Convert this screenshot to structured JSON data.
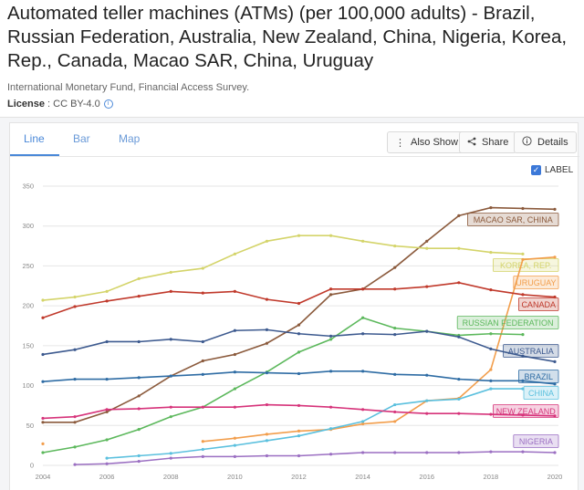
{
  "title": "Automated teller machines (ATMs) (per 100,000 adults) - Brazil, Russian Federation, Australia, New Zealand, China, Nigeria, Korea, Rep., Canada, Macao SAR, China, Uruguay",
  "source": "International Monetary Fund, Financial Access Survey.",
  "license": {
    "label": "License",
    "value": "CC BY-4.0",
    "info_icon": "info-icon"
  },
  "tabs": [
    {
      "label": "Line",
      "active": true
    },
    {
      "label": "Bar",
      "active": false
    },
    {
      "label": "Map",
      "active": false
    }
  ],
  "buttons": {
    "also_show": {
      "label": "Also Show",
      "icon": "vertical-dots-icon"
    },
    "share": {
      "label": "Share",
      "icon": "share-icon"
    },
    "details": {
      "label": "Details",
      "icon": "info-icon"
    }
  },
  "label_toggle": {
    "label": "LABEL",
    "checked": true
  },
  "colors": {
    "accent": "#4a88d8"
  },
  "chart_data": {
    "type": "line",
    "x": [
      2004,
      2005,
      2006,
      2007,
      2008,
      2009,
      2010,
      2011,
      2012,
      2013,
      2014,
      2015,
      2016,
      2017,
      2018,
      2019,
      2020
    ],
    "xticks": [
      2004,
      2006,
      2008,
      2010,
      2012,
      2014,
      2016,
      2018,
      2020
    ],
    "ylim": [
      0,
      350
    ],
    "yticks": [
      0,
      50,
      100,
      150,
      200,
      250,
      300,
      350
    ],
    "grid": "horizontal",
    "series": [
      {
        "name": "MACAO SAR, CHINA",
        "color": "#8b5a3c",
        "values": [
          54,
          54,
          67,
          87,
          112,
          131,
          139,
          153,
          176,
          214,
          221,
          248,
          281,
          313,
          323,
          322,
          321
        ]
      },
      {
        "name": "KOREA, REP.",
        "color": "#d4d46a",
        "values": [
          207,
          211,
          218,
          234,
          242,
          247,
          265,
          281,
          288,
          288,
          281,
          275,
          272,
          272,
          267,
          265,
          null
        ]
      },
      {
        "name": "URUGUAY",
        "color": "#f29e4c",
        "values": [
          27,
          null,
          null,
          null,
          null,
          30,
          34,
          39,
          43,
          45,
          52,
          55,
          81,
          84,
          120,
          258,
          261
        ]
      },
      {
        "name": "CANADA",
        "color": "#c0392b",
        "values": [
          185,
          199,
          206,
          212,
          218,
          216,
          218,
          208,
          203,
          221,
          221,
          221,
          224,
          229,
          220,
          214,
          211
        ]
      },
      {
        "name": "RUSSIAN FEDERATION",
        "color": "#5cb85c",
        "values": [
          16,
          23,
          32,
          45,
          61,
          73,
          96,
          117,
          142,
          158,
          185,
          172,
          168,
          163,
          165,
          164,
          null
        ]
      },
      {
        "name": "AUSTRALIA",
        "color": "#3d5a8f",
        "values": [
          139,
          145,
          155,
          155,
          158,
          155,
          169,
          170,
          165,
          162,
          165,
          164,
          168,
          161,
          146,
          137,
          130
        ]
      },
      {
        "name": "BRAZIL",
        "color": "#2e6ca4",
        "values": [
          105,
          108,
          108,
          110,
          112,
          114,
          117,
          116,
          115,
          118,
          118,
          114,
          113,
          108,
          106,
          106,
          102
        ]
      },
      {
        "name": "CHINA",
        "color": "#5bc0de",
        "values": [
          null,
          null,
          9,
          12,
          15,
          20,
          25,
          31,
          37,
          46,
          55,
          76,
          81,
          83,
          96,
          96,
          null
        ]
      },
      {
        "name": "NEW ZEALAND",
        "color": "#d6337a",
        "values": [
          59,
          61,
          70,
          71,
          73,
          73,
          73,
          76,
          75,
          73,
          70,
          67,
          65,
          65,
          64,
          63,
          62
        ]
      },
      {
        "name": "NIGERIA",
        "color": "#9b6fc2",
        "values": [
          null,
          1,
          2,
          5,
          9,
          11,
          11,
          12,
          12,
          14,
          16,
          16,
          16,
          16,
          17,
          17,
          16
        ]
      }
    ]
  }
}
